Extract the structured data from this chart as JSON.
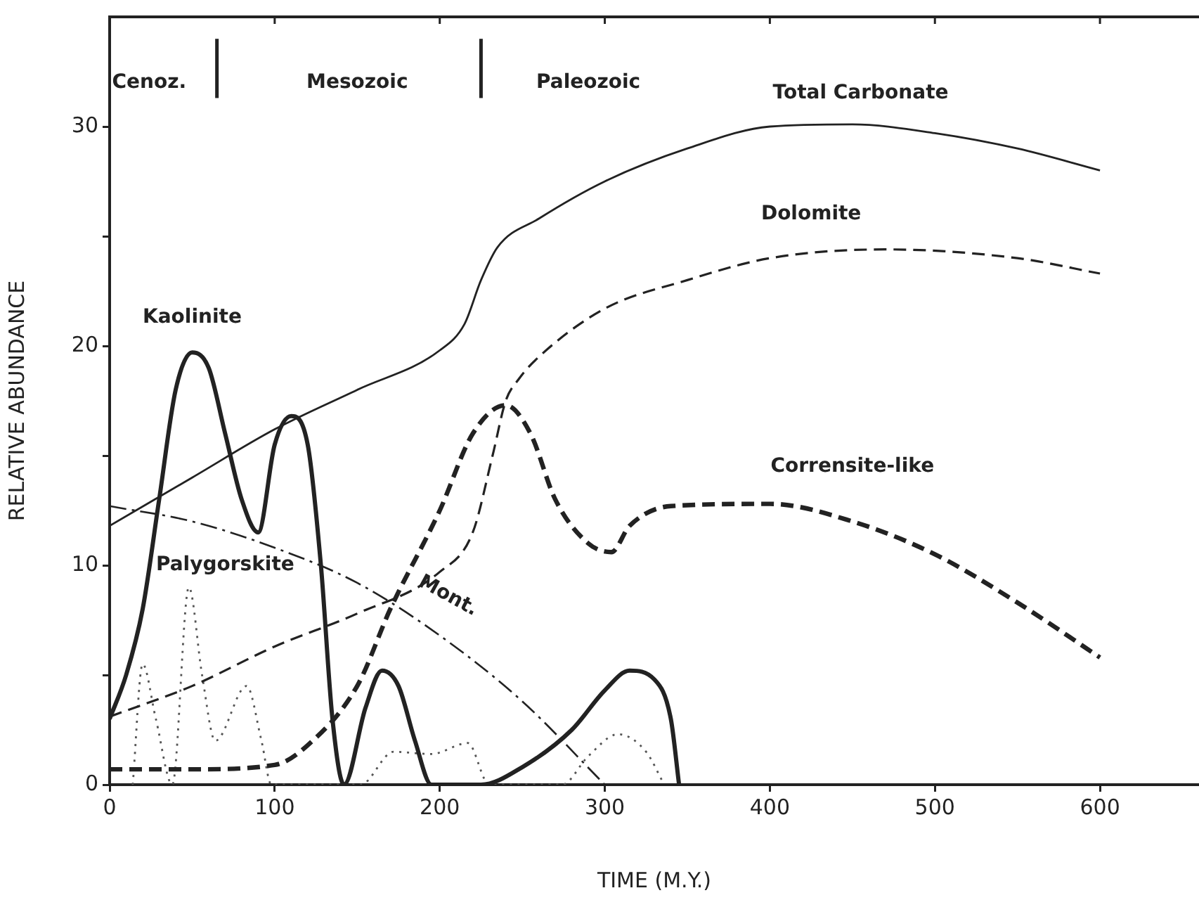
{
  "chart_data": {
    "type": "line",
    "xlabel": "TIME (M.Y.)",
    "ylabel": "RELATIVE ABUNDANCE",
    "xlim": [
      0,
      660
    ],
    "xticks": [
      0,
      100,
      200,
      300,
      400,
      500,
      600
    ],
    "ylim": [
      0,
      35
    ],
    "yticks": [
      0,
      {
        "value": 5,
        "label": null
      },
      10,
      {
        "value": 15,
        "label": null
      },
      20,
      {
        "value": 25,
        "label": null
      },
      30
    ],
    "grid": false,
    "legend": false,
    "marker": "none",
    "series": [
      {
        "color": "#222222",
        "line_style": "solid",
        "x": [
          0,
          50,
          100,
          150,
          200,
          215,
          225,
          235,
          260,
          300,
          350,
          400,
          450,
          500,
          550,
          600
        ],
        "values": [
          11.8,
          14,
          16.2,
          18,
          19.8,
          21,
          23,
          24.5,
          25.8,
          27.5,
          29,
          30,
          30.1,
          29.7,
          29,
          28
        ]
      },
      {
        "color": "#222222",
        "line_style": "dashed",
        "x": [
          0,
          50,
          100,
          150,
          200,
          220,
          232,
          240,
          248,
          260,
          300,
          350,
          400,
          470,
          550,
          600
        ],
        "values": [
          3.1,
          4.5,
          6.3,
          7.8,
          9.7,
          11.5,
          15,
          17.5,
          18.5,
          19.5,
          21.7,
          23,
          24,
          24.4,
          24,
          23.3
        ]
      },
      {
        "color": "#222222",
        "line_style": "dashed",
        "x": [
          0,
          50,
          100,
          120,
          150,
          170,
          200,
          220,
          240,
          255,
          270,
          290,
          304,
          315,
          340,
          400,
          450,
          500,
          550,
          600
        ],
        "values": [
          0.7,
          0.7,
          0.9,
          1.8,
          4.5,
          8,
          12.5,
          16,
          17.3,
          16,
          13,
          11,
          10.6,
          11.8,
          12.7,
          12.8,
          12,
          10.5,
          8.3,
          5.8
        ]
      },
      {
        "color": "#222222",
        "line_style": "solid",
        "x": [
          0,
          10,
          20,
          30,
          40,
          50,
          60,
          70,
          80,
          90,
          100,
          110,
          120,
          128,
          135,
          142,
          155,
          165,
          175,
          185,
          195,
          225,
          250,
          280,
          300,
          315,
          330,
          340,
          345
        ],
        "values": [
          3,
          5,
          8,
          13,
          18,
          19.7,
          19,
          16,
          13,
          11.5,
          15.5,
          16.8,
          15.5,
          10,
          3,
          0,
          3.5,
          5.2,
          4.5,
          2,
          0,
          0,
          0.8,
          2.5,
          4.3,
          5.2,
          4.8,
          3,
          0
        ]
      },
      {
        "color": "#222222",
        "line_style": "dashdot",
        "x": [
          0,
          50,
          100,
          150,
          200,
          250,
          300
        ],
        "values": [
          12.7,
          12,
          10.8,
          9.2,
          6.8,
          3.8,
          0
        ]
      },
      {
        "color": "#555555",
        "line_style": "dotted",
        "x": [
          14,
          20,
          28,
          38,
          48,
          56,
          64,
          83,
          92,
          98,
          152,
          172,
          195,
          217,
          230,
          274,
          290,
          308,
          325,
          336
        ],
        "values": [
          0,
          5.5,
          3,
          0,
          9,
          5,
          2,
          4.5,
          2,
          0,
          0,
          1.5,
          1.4,
          1.9,
          0,
          0,
          1.3,
          2.3,
          1.5,
          0
        ]
      },
      {
        "color": "#222222",
        "line_style": "solid",
        "x": [
          65,
          65
        ],
        "values": [
          31.3,
          34
        ]
      },
      {
        "color": "#222222",
        "line_style": "solid",
        "x": [
          225,
          225
        ],
        "values": [
          31.3,
          34
        ]
      }
    ],
    "annotations": [
      "Cenoz.",
      "Mesozoic",
      "Paleozoic",
      "Total Carbonate",
      "Dolomite",
      "Kaolinite",
      "Corrensite-like",
      "Palygorskite",
      "Mont."
    ]
  }
}
